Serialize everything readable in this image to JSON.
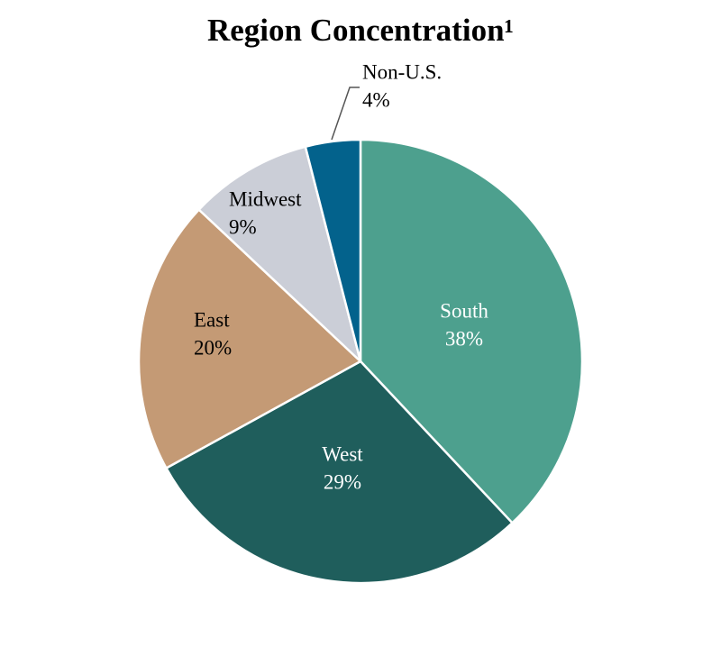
{
  "chart_data": {
    "type": "pie",
    "title": "Region Concentration¹",
    "slices": [
      {
        "label": "South",
        "value": 38,
        "value_label": "38%",
        "color": "#4da08e",
        "text_color": "#ffffff"
      },
      {
        "label": "West",
        "value": 29,
        "value_label": "29%",
        "color": "#1f5e5c",
        "text_color": "#ffffff"
      },
      {
        "label": "East",
        "value": 20,
        "value_label": "20%",
        "color": "#c49a75",
        "text_color": "#000000"
      },
      {
        "label": "Midwest",
        "value": 9,
        "value_label": "9%",
        "color": "#cbced7",
        "text_color": "#000000"
      },
      {
        "label": "Non-U.S.",
        "value": 4,
        "value_label": "4%",
        "color": "#03628c",
        "text_color": "#000000"
      }
    ],
    "start": "12 o'clock",
    "direction": "clockwise",
    "legend": "none"
  }
}
